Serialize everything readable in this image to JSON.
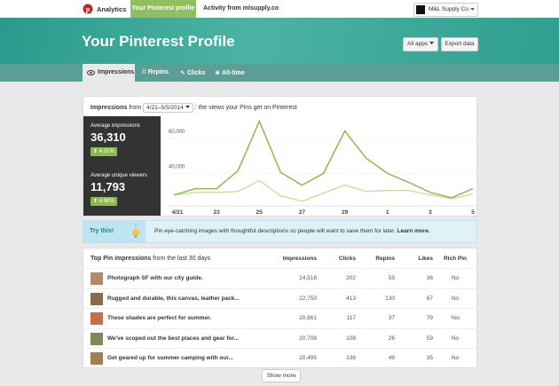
{
  "nav": {
    "brand": "Analytics",
    "tabs": [
      "Your Pinterest profile",
      "Activity from mlsupply.co"
    ],
    "account": "M&L Supply Co."
  },
  "header": {
    "title": "Your Pinterest Profile",
    "buttons": [
      "All apps",
      "Export data"
    ]
  },
  "subtabs": [
    "Impressions",
    "Repins",
    "Clicks",
    "All-time"
  ],
  "impressions": {
    "label": "Impressions",
    "from": "from",
    "date_range": "4/21–5/5/2014",
    "description": ": the views your Pins get on Pinterest",
    "stats": [
      {
        "label": "Average impressions",
        "value": "36,310",
        "change": "4.21%"
      },
      {
        "label": "Average unique viewers",
        "value": "11,793",
        "change": "4.90%"
      }
    ],
    "chart": {
      "type": "line",
      "categories": [
        "4/21",
        null,
        "23",
        null,
        "25",
        null,
        "27",
        null,
        "29",
        null,
        "1",
        null,
        "3",
        null,
        "5"
      ],
      "ylim": [
        22000,
        70000
      ],
      "yticks": [
        {
          "value": 40000,
          "label": "40,000"
        },
        {
          "value": 60000,
          "label": "60,000"
        }
      ],
      "series": [
        {
          "color": "#c9e0a4",
          "values": [
            27700,
            29200,
            29200,
            29700,
            35900,
            27200,
            24100,
            28700,
            33300,
            29700,
            30300,
            30300,
            27700,
            25600,
            28200
          ]
        },
        {
          "color": "#8cba4e",
          "values": [
            27700,
            31300,
            31300,
            41500,
            69700,
            40500,
            33300,
            40000,
            64100,
            48700,
            40000,
            34900,
            29200,
            26100,
            31300
          ]
        }
      ]
    }
  },
  "tip": {
    "label": "Try this!",
    "text": "Pin eye-catching images with thoughtful descriptions so people will want to save them for later.",
    "link": "Learn more."
  },
  "table": {
    "title": "Top Pin impressions",
    "subtitle": "from the last 30 days",
    "columns": [
      "Impressions",
      "Clicks",
      "Repins",
      "Likes",
      "Rich Pin"
    ],
    "rows": [
      [
        "Photograph SF with our city guide.",
        "24,518",
        "202",
        "55",
        "36",
        "No"
      ],
      [
        "Rugged and durable, this canvas, leather pack...",
        "22,750",
        "413",
        "130",
        "67",
        "No"
      ],
      [
        "These shades are perfect for summer.",
        "20,861",
        "117",
        "37",
        "79",
        "Yes"
      ],
      [
        "We've scoped out the best places and gear for...",
        "20,708",
        "108",
        "26",
        "59",
        "No"
      ],
      [
        "Get geared up for summer camping with our...",
        "20,495",
        "136",
        "49",
        "35",
        "No"
      ]
    ]
  },
  "show_more": "Show more"
}
